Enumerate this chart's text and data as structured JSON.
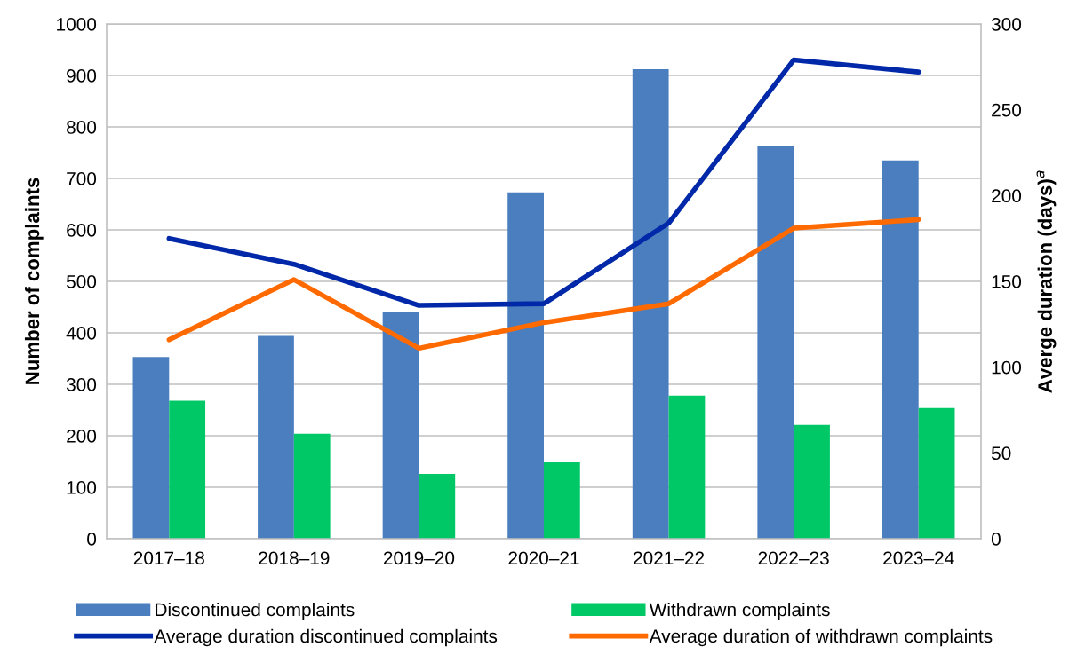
{
  "chart_data": {
    "type": "bar",
    "categories": [
      "2017–18",
      "2018–19",
      "2019–20",
      "2020–21",
      "2021–22",
      "2022–23",
      "2023–24"
    ],
    "ylabel": "Number of complaints",
    "y2label": "Averge duration (days)$^{a}$",
    "series": [
      {
        "name": "Discontinued complaints",
        "color": "#4a7ebf",
        "values": [
          353,
          394,
          440,
          673,
          912,
          764,
          735
        ]
      },
      {
        "name": "Withdrawn complaints",
        "color": "#00c866",
        "values": [
          268,
          204,
          126,
          149,
          278,
          221,
          254
        ]
      },
      {
        "name": "Average duration discontinued complaints",
        "type": "line",
        "axis": "y2",
        "color": "#0028a8",
        "values": [
          175,
          160,
          136,
          137,
          184,
          279,
          272
        ]
      },
      {
        "name": "Average duration of withdrawn complaints",
        "type": "line",
        "axis": "y2",
        "color": "#ff6a00",
        "values": [
          116,
          151,
          111,
          126,
          137,
          181,
          186
        ]
      }
    ],
    "ylim": [
      0,
      1000
    ],
    "yticks": [
      0,
      100,
      200,
      300,
      400,
      500,
      600,
      700,
      800,
      900,
      1000
    ],
    "y2lim": [
      0,
      300
    ],
    "y2ticks": [
      0,
      50,
      100,
      150,
      200,
      250,
      300
    ],
    "grid": "y",
    "legend": "bottom",
    "marker": "none",
    "line_style": "solid"
  }
}
